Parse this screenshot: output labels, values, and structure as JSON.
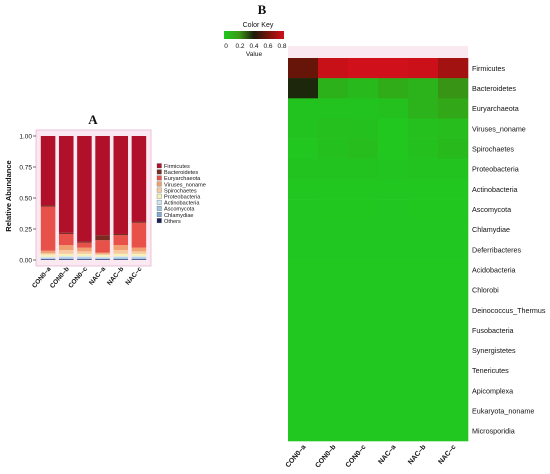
{
  "panel_a_label": "A",
  "panel_b_label": "B",
  "color_key": {
    "title": "Color Key",
    "xlabel": "Value",
    "ticks": [
      "0",
      "0.2",
      "0.4",
      "0.6",
      "0.8"
    ],
    "colors": [
      "#20c820",
      "#3a9a14",
      "#1a1a0a",
      "#7a1408",
      "#d0101a"
    ]
  },
  "chart_data": [
    {
      "type": "bar",
      "stacked": true,
      "title": "",
      "xlabel": "",
      "ylabel": "Relative Abundance",
      "ylim": [
        0,
        1
      ],
      "yticks": [
        "0.00",
        "0.25",
        "0.50",
        "0.75",
        "1.00"
      ],
      "categories": [
        "CON0–a",
        "CON0–b",
        "CON0–c",
        "NAC–a",
        "NAC–b",
        "NAC–c"
      ],
      "legend_position": "right",
      "series": [
        {
          "name": "Others",
          "color": "#1f1f5a",
          "values": [
            0.005,
            0.005,
            0.005,
            0.005,
            0.005,
            0.005
          ]
        },
        {
          "name": "Chlamydiae",
          "color": "#7fa9d6",
          "values": [
            0.005,
            0.005,
            0.005,
            0.005,
            0.005,
            0.005
          ]
        },
        {
          "name": "Ascomycota",
          "color": "#9ec4e6",
          "values": [
            0.005,
            0.01,
            0.01,
            0.005,
            0.01,
            0.01
          ]
        },
        {
          "name": "Actinobacteria",
          "color": "#cfe3f2",
          "values": [
            0.01,
            0.01,
            0.01,
            0.01,
            0.01,
            0.01
          ]
        },
        {
          "name": "Proteobacteria",
          "color": "#f6f1b8",
          "values": [
            0.02,
            0.02,
            0.02,
            0.015,
            0.02,
            0.02
          ]
        },
        {
          "name": "Spirochaetes",
          "color": "#f7c9a0",
          "values": [
            0.01,
            0.03,
            0.02,
            0.01,
            0.03,
            0.02
          ]
        },
        {
          "name": "Viruses_noname",
          "color": "#f0a070",
          "values": [
            0.02,
            0.04,
            0.03,
            0.01,
            0.04,
            0.03
          ]
        },
        {
          "name": "Euryarchaeota",
          "color": "#e8504a",
          "values": [
            0.355,
            0.09,
            0.04,
            0.1,
            0.08,
            0.2
          ]
        },
        {
          "name": "Bacteroidetes",
          "color": "#7a2a20",
          "values": [
            0.01,
            0.01,
            0.01,
            0.04,
            0.01,
            0.01
          ]
        },
        {
          "name": "Firmicutes",
          "color": "#b0102a",
          "values": [
            0.56,
            0.78,
            0.85,
            0.8,
            0.79,
            0.69
          ]
        }
      ]
    },
    {
      "type": "heatmap",
      "title": "",
      "x": [
        "CON0–a",
        "CON0–b",
        "CON0–c",
        "NAC–a",
        "NAC–b",
        "NAC–c"
      ],
      "y": [
        "Firmicutes",
        "Bacteroidetes",
        "Euryarchaeota",
        "Viruses_noname",
        "Spirochaetes",
        "Proteobacteria",
        "Actinobacteria",
        "Ascomycota",
        "Chlamydiae",
        "Deferribacteres",
        "Acidobacteria",
        "Chlorobi",
        "Deinococcus_Thermus",
        "Fusobacteria",
        "Synergistetes",
        "Tenericutes",
        "Apicomplexa",
        "Eukaryota_noname",
        "Microsporidia"
      ],
      "value_range": [
        0,
        0.8
      ],
      "values": [
        [
          0.56,
          0.78,
          0.85,
          0.8,
          0.79,
          0.69
        ],
        [
          0.38,
          0.1,
          0.06,
          0.12,
          0.09,
          0.21
        ],
        [
          0.02,
          0.02,
          0.02,
          0.03,
          0.09,
          0.14
        ],
        [
          0.02,
          0.04,
          0.03,
          0.01,
          0.04,
          0.05
        ],
        [
          0.01,
          0.03,
          0.05,
          0.01,
          0.03,
          0.06
        ],
        [
          0.02,
          0.02,
          0.02,
          0.015,
          0.02,
          0.02
        ],
        [
          0.01,
          0.01,
          0.01,
          0.01,
          0.01,
          0.01
        ],
        [
          0.005,
          0.01,
          0.01,
          0.005,
          0.01,
          0.01
        ],
        [
          0.005,
          0.005,
          0.005,
          0.005,
          0.005,
          0.005
        ],
        [
          0.003,
          0.003,
          0.003,
          0.003,
          0.003,
          0.003
        ],
        [
          0.002,
          0.002,
          0.002,
          0.002,
          0.002,
          0.002
        ],
        [
          0.002,
          0.002,
          0.002,
          0.002,
          0.002,
          0.002
        ],
        [
          0.001,
          0.001,
          0.001,
          0.001,
          0.001,
          0.001
        ],
        [
          0.001,
          0.001,
          0.001,
          0.001,
          0.001,
          0.001
        ],
        [
          0.001,
          0.001,
          0.001,
          0.001,
          0.001,
          0.001
        ],
        [
          0.001,
          0.001,
          0.001,
          0.001,
          0.001,
          0.001
        ],
        [
          0.001,
          0.001,
          0.001,
          0.001,
          0.001,
          0.001
        ],
        [
          0.001,
          0.001,
          0.001,
          0.001,
          0.001,
          0.001
        ],
        [
          0.001,
          0.001,
          0.001,
          0.001,
          0.001,
          0.001
        ]
      ]
    }
  ]
}
